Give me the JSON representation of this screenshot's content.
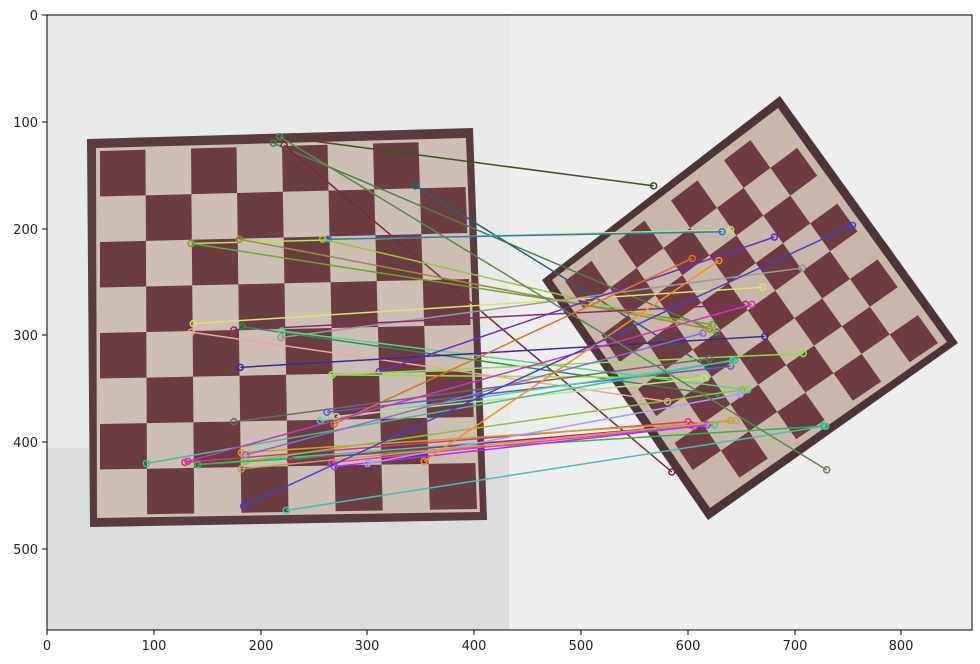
{
  "x_axis": {
    "ticks": [
      "0",
      "100",
      "200",
      "300",
      "400",
      "500",
      "600",
      "700",
      "800"
    ]
  },
  "y_axis": {
    "ticks": [
      "0",
      "100",
      "200",
      "300",
      "400",
      "500"
    ]
  },
  "image": {
    "width": 866,
    "height": 576,
    "background": "#e8e8e8"
  },
  "matches": [
    {
      "a": [
        218,
        114
      ],
      "b": [
        568,
        160
      ],
      "c": "#3b5323"
    },
    {
      "a": [
        212,
        120
      ],
      "b": [
        627,
        297
      ],
      "c": "#4e7f4c"
    },
    {
      "a": [
        222,
        122
      ],
      "b": [
        585,
        428
      ],
      "c": "#7a2a3a"
    },
    {
      "a": [
        345,
        160
      ],
      "b": [
        619,
        330
      ],
      "c": "#2a5d78"
    },
    {
      "a": [
        135,
        214
      ],
      "b": [
        640,
        201
      ],
      "c": "#b6e26a"
    },
    {
      "a": [
        135,
        214
      ],
      "b": [
        623,
        290
      ],
      "c": "#6aa52e"
    },
    {
      "a": [
        263,
        210
      ],
      "b": [
        632,
        203
      ],
      "c": "#2b7bb8"
    },
    {
      "a": [
        258,
        210
      ],
      "b": [
        622,
        295
      ],
      "c": "#9bc53d"
    },
    {
      "a": [
        180,
        210
      ],
      "b": [
        620,
        294
      ],
      "c": "#a08a3a"
    },
    {
      "a": [
        137,
        289
      ],
      "b": [
        670,
        255
      ],
      "c": "#e0e070"
    },
    {
      "a": [
        219,
        302
      ],
      "b": [
        707,
        237
      ],
      "c": "#9a9a9a"
    },
    {
      "a": [
        135,
        297
      ],
      "b": [
        581,
        362
      ],
      "c": "#f2a3a3"
    },
    {
      "a": [
        175,
        295
      ],
      "b": [
        654,
        271
      ],
      "c": "#8b2a6b"
    },
    {
      "a": [
        183,
        292
      ],
      "b": [
        630,
        356
      ],
      "c": "#2e8b57"
    },
    {
      "a": [
        220,
        296
      ],
      "b": [
        656,
        351
      ],
      "c": "#5fd08a"
    },
    {
      "a": [
        181,
        330
      ],
      "b": [
        672,
        301
      ],
      "c": "#3a2aa0"
    },
    {
      "a": [
        311,
        334
      ],
      "b": [
        681,
        208
      ],
      "c": "#6a2ad0"
    },
    {
      "a": [
        267,
        337
      ],
      "b": [
        708,
        317
      ],
      "c": "#8be04a"
    },
    {
      "a": [
        267,
        337
      ],
      "b": [
        617,
        340
      ],
      "c": "#9be23a"
    },
    {
      "a": [
        262,
        372
      ],
      "b": [
        640,
        329
      ],
      "c": "#5a5ad0"
    },
    {
      "a": [
        256,
        380
      ],
      "b": [
        642,
        324
      ],
      "c": "#4fd3b0"
    },
    {
      "a": [
        269,
        383
      ],
      "b": [
        604,
        228
      ],
      "c": "#e07020"
    },
    {
      "a": [
        175,
        381
      ],
      "b": [
        620,
        322
      ],
      "c": "#6a6a6a"
    },
    {
      "a": [
        271,
        376
      ],
      "b": [
        615,
        340
      ],
      "c": "#c0e090"
    },
    {
      "a": [
        93,
        420
      ],
      "b": [
        644,
        323
      ],
      "c": "#40c090"
    },
    {
      "a": [
        132,
        418
      ],
      "b": [
        660,
        271
      ],
      "c": "#d030c0"
    },
    {
      "a": [
        129,
        419
      ],
      "b": [
        600,
        381
      ],
      "c": "#e03080"
    },
    {
      "a": [
        141,
        421
      ],
      "b": [
        625,
        384
      ],
      "c": "#2ad0a0"
    },
    {
      "a": [
        182,
        410
      ],
      "b": [
        640,
        380
      ],
      "c": "#d0a020"
    },
    {
      "a": [
        186,
        412
      ],
      "b": [
        614,
        298
      ],
      "c": "#8a6ad0"
    },
    {
      "a": [
        186,
        418
      ],
      "b": [
        651,
        351
      ],
      "c": "#90c040"
    },
    {
      "a": [
        141,
        421
      ],
      "b": [
        727,
        385
      ],
      "c": "#3ab04a"
    },
    {
      "a": [
        228,
        417
      ],
      "b": [
        603,
        384
      ],
      "c": "#c02060"
    },
    {
      "a": [
        267,
        419
      ],
      "b": [
        606,
        385
      ],
      "c": "#ff3aa0"
    },
    {
      "a": [
        269,
        423
      ],
      "b": [
        618,
        384
      ],
      "c": "#aa30ff"
    },
    {
      "a": [
        300,
        420
      ],
      "b": [
        649,
        355
      ],
      "c": "#a0a0ff"
    },
    {
      "a": [
        353,
        418
      ],
      "b": [
        629,
        230
      ],
      "c": "#ff8a20"
    },
    {
      "a": [
        182,
        425
      ],
      "b": [
        645,
        380
      ],
      "c": "#c0a060"
    },
    {
      "a": [
        184,
        460
      ],
      "b": [
        754,
        197
      ],
      "c": "#4040d0"
    },
    {
      "a": [
        224,
        464
      ],
      "b": [
        729,
        385
      ],
      "c": "#40c0b0"
    },
    {
      "a": [
        218,
        114
      ],
      "b": [
        730,
        426
      ],
      "c": "#5a8a4a"
    }
  ]
}
